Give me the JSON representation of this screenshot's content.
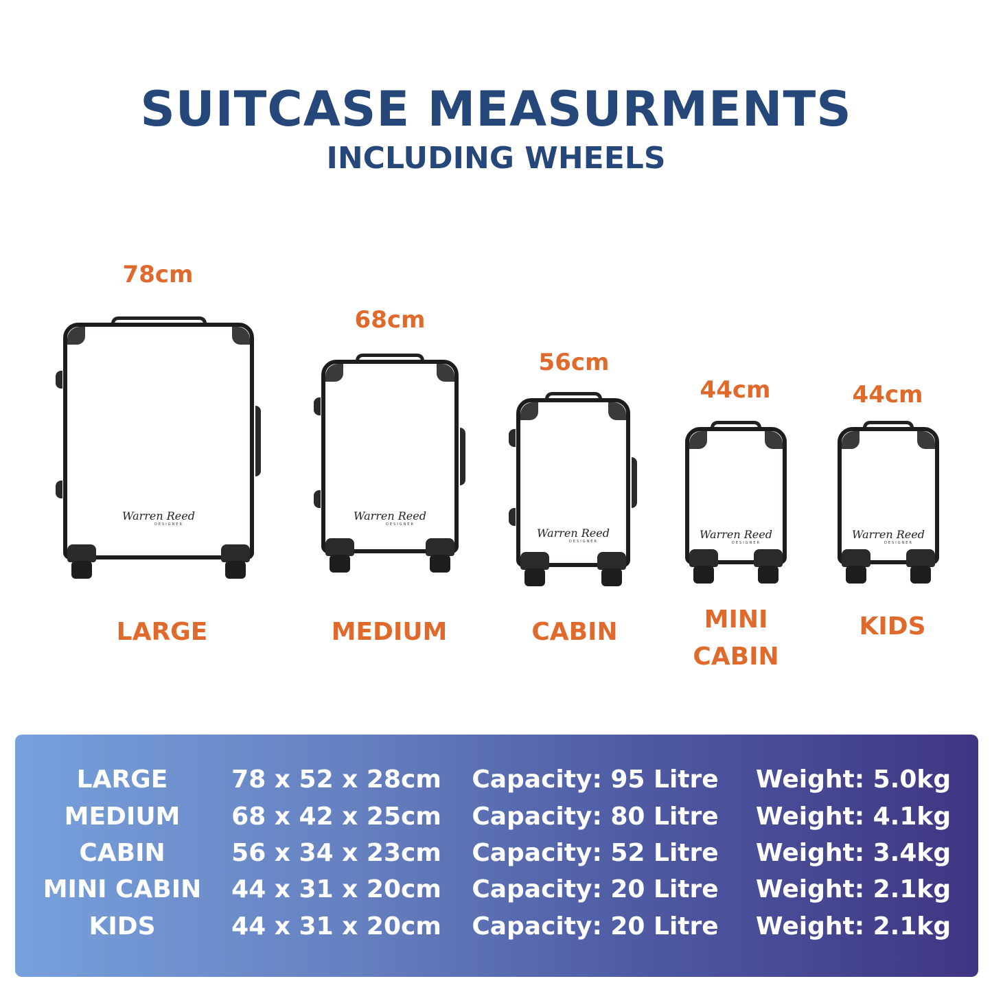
{
  "header": {
    "title": "SUITCASE MEASURMENTS",
    "subtitle": "INCLUDING WHEELS"
  },
  "colors": {
    "title": "#25477a",
    "accent": "#e06a2c",
    "table_gradient_start": "#77a1dc",
    "table_gradient_end": "#3f3683"
  },
  "logo": {
    "signature": "Warren Reed",
    "tagline": "DESIGNER"
  },
  "suitcases": [
    {
      "height": "78cm",
      "name": "LARGE"
    },
    {
      "height": "68cm",
      "name": "MEDIUM"
    },
    {
      "height": "56cm",
      "name": "CABIN"
    },
    {
      "height": "44cm",
      "name_line1": "MINI",
      "name_line2": "CABIN"
    },
    {
      "height": "44cm",
      "name": "KIDS"
    }
  ],
  "table": {
    "rows": [
      {
        "size": "LARGE",
        "dimensions": "78 x 52 x 28cm",
        "capacity": "Capacity: 95 Litre",
        "weight": "Weight: 5.0kg"
      },
      {
        "size": "MEDIUM",
        "dimensions": "68 x 42 x 25cm",
        "capacity": "Capacity: 80 Litre",
        "weight": "Weight: 4.1kg"
      },
      {
        "size": "CABIN",
        "dimensions": "56 x 34 x 23cm",
        "capacity": "Capacity: 52 Litre",
        "weight": "Weight: 3.4kg"
      },
      {
        "size": "MINI CABIN",
        "dimensions": "44 x 31 x 20cm",
        "capacity": "Capacity: 20 Litre",
        "weight": "Weight: 2.1kg"
      },
      {
        "size": "KIDS",
        "dimensions": "44 x 31 x 20cm",
        "capacity": "Capacity: 20 Litre",
        "weight": "Weight: 2.1kg"
      }
    ]
  }
}
